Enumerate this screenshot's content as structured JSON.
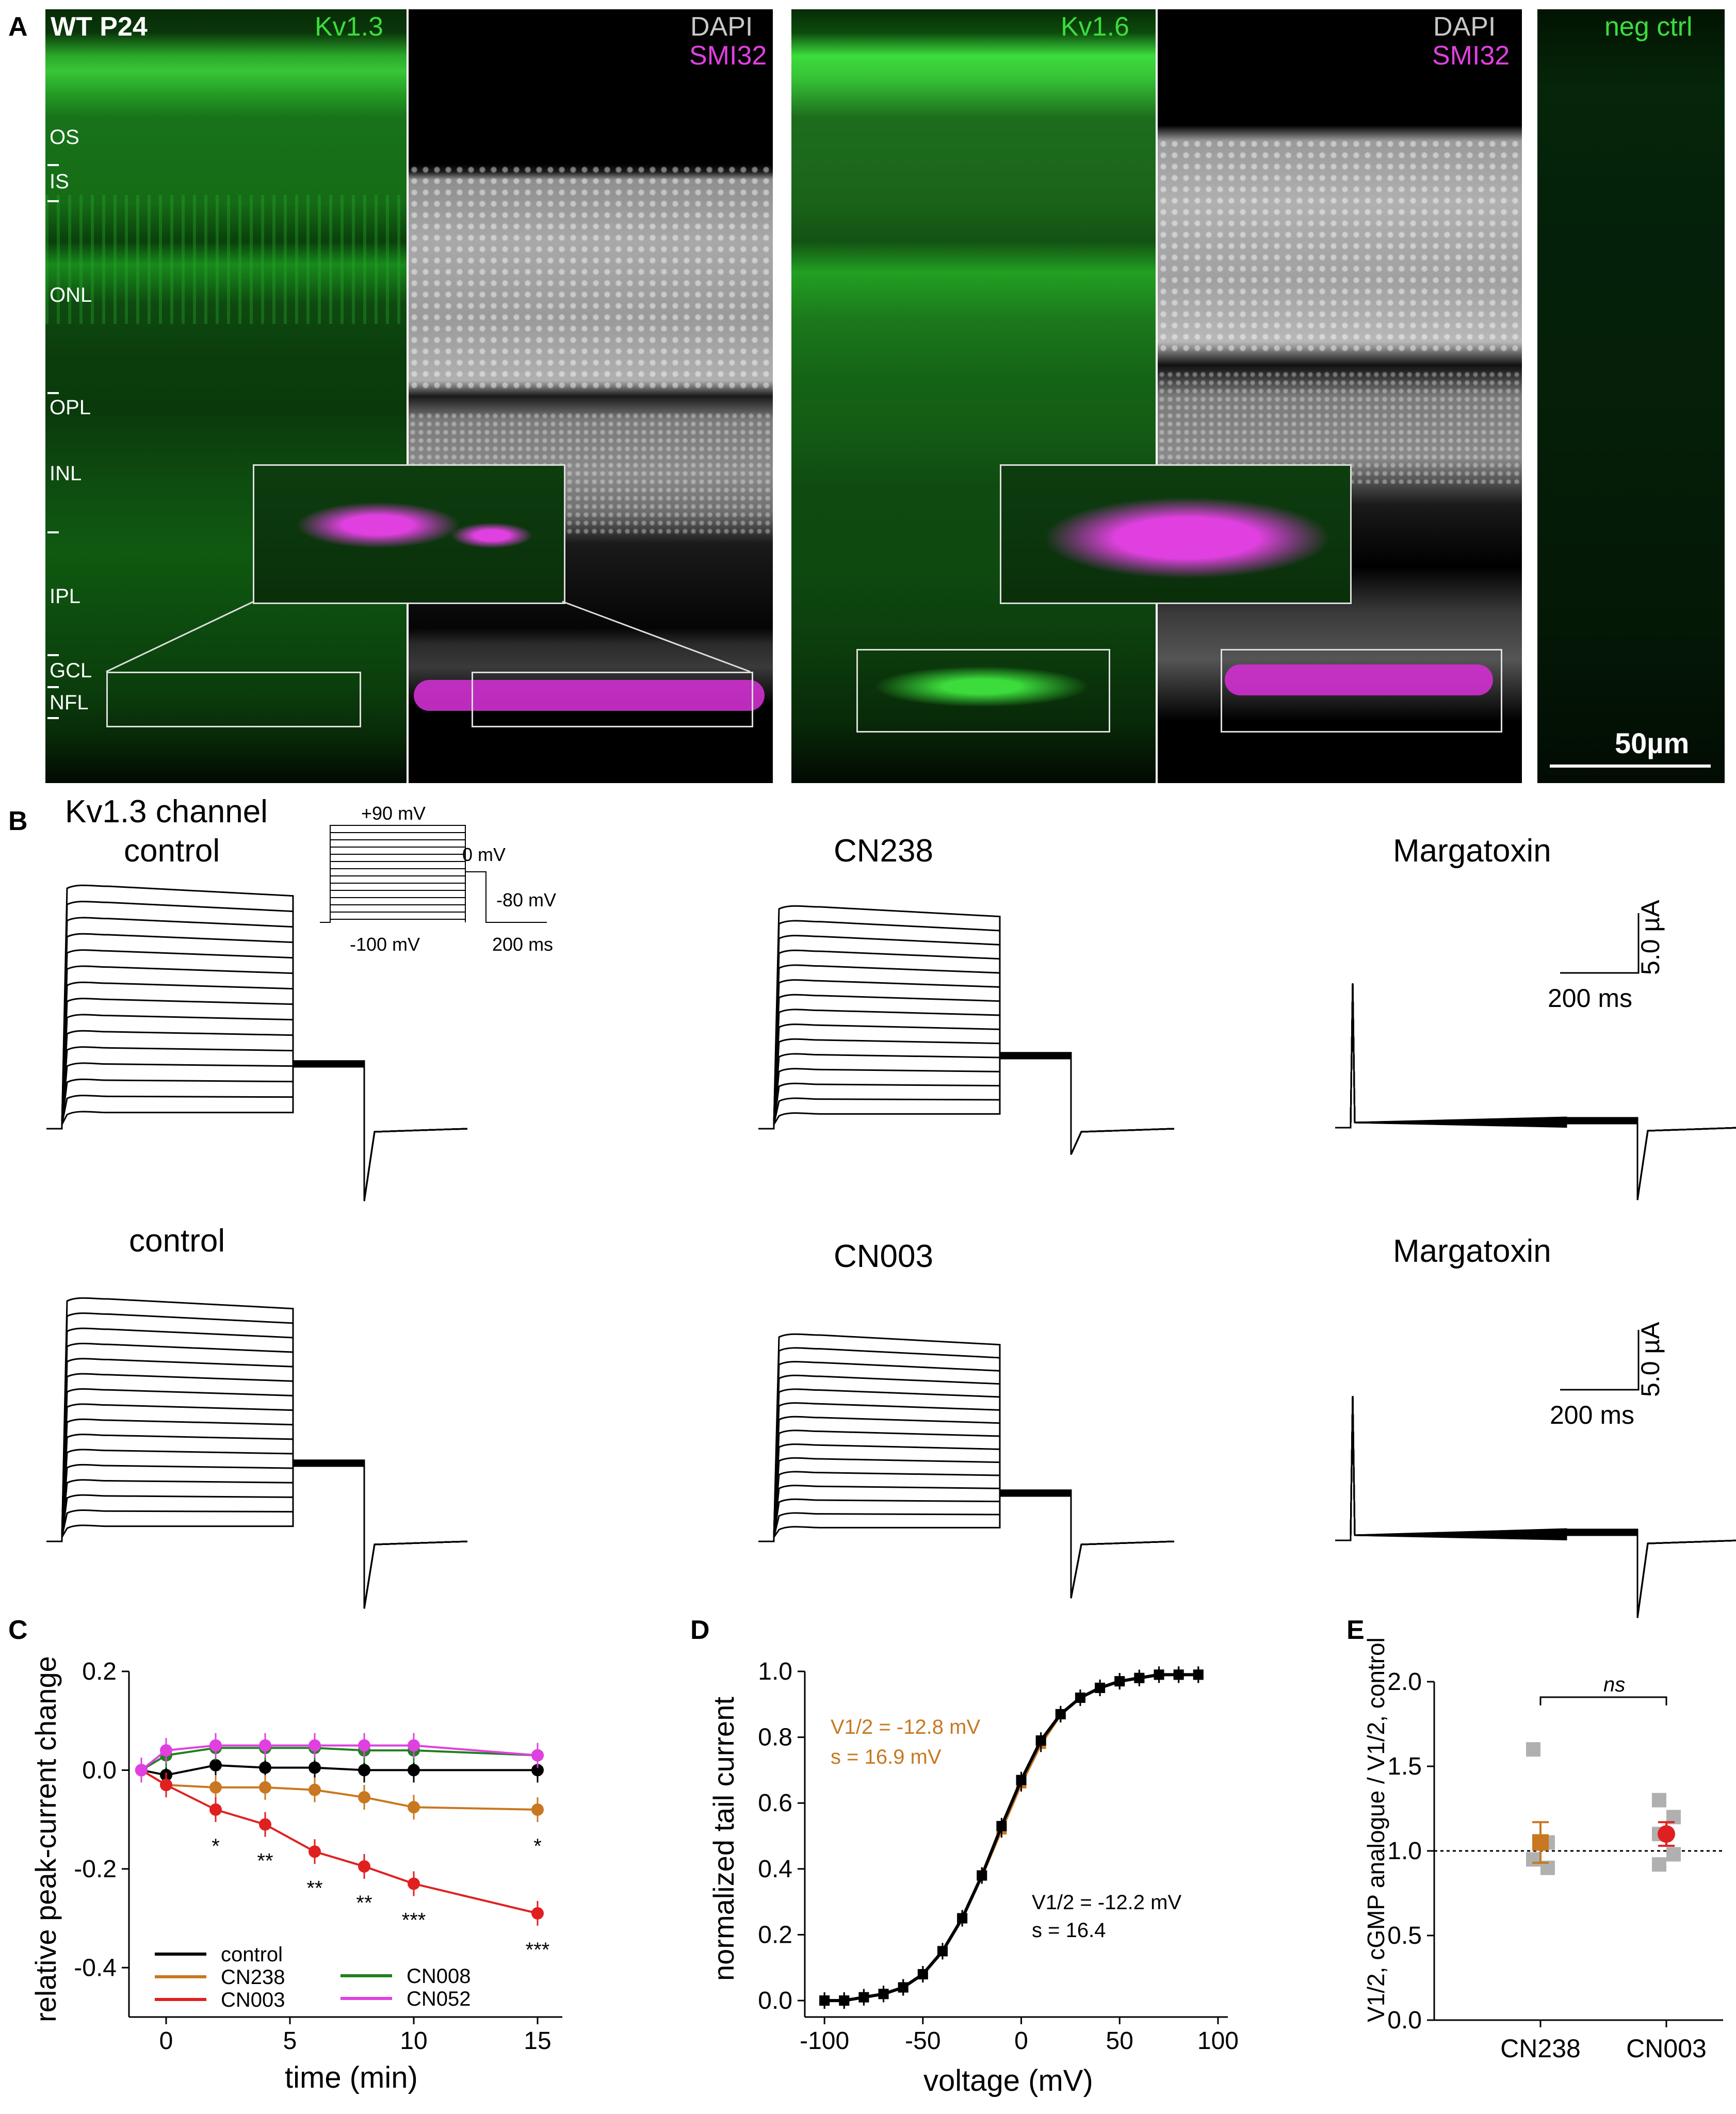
{
  "panels": {
    "A": "A",
    "B": "B",
    "C": "C",
    "D": "D",
    "E": "E"
  },
  "panelA": {
    "title": "WT P24",
    "kv13": "Kv1.3",
    "kv16": "Kv1.6",
    "dapi": "DAPI",
    "smi32": "SMI32",
    "neg_ctrl": "neg ctrl",
    "scale_bar": "50µm",
    "layers": [
      "OS",
      "IS",
      "ONL",
      "OPL",
      "INL",
      "IPL",
      "GCL",
      "NFL"
    ],
    "colors": {
      "green": "#3cdc3c",
      "magenta": "#e040e0",
      "gray": "#c8c8c8"
    }
  },
  "panelB": {
    "title": "Kv1.3 channel",
    "row1": {
      "control": "control",
      "drug": "CN238",
      "toxin": "Margatoxin"
    },
    "row2": {
      "control": "control",
      "drug": "CN003",
      "toxin": "Margatoxin"
    },
    "protocol": {
      "v_top": "+90 mV",
      "v_zero": "0 mV",
      "v_hold": "-80 mV",
      "v_bottom": "-100 mV",
      "t_scale": "200 ms"
    },
    "scale": {
      "current": "5.0 µA",
      "time": "200 ms"
    }
  },
  "panelC": {
    "ylabel": "relative peak-current change",
    "xlabel": "time (min)",
    "yticks": [
      "0.2",
      "0.0",
      "-0.2",
      "-0.4"
    ],
    "xticks": [
      "0",
      "5",
      "10",
      "15"
    ],
    "legend": [
      "control",
      "CN238",
      "CN003",
      "CN008",
      "CN052"
    ],
    "stars": [
      "*",
      "**",
      "**",
      "**",
      "***",
      "***",
      "*",
      "*"
    ]
  },
  "panelD": {
    "ylabel": "normalized tail current",
    "xlabel": "voltage (mV)",
    "yticks": [
      "1.0",
      "0.8",
      "0.6",
      "0.4",
      "0.2",
      "0.0"
    ],
    "xticks": [
      "-100",
      "-50",
      "0",
      "50",
      "100"
    ],
    "fit1_v": "V1/2 = -12.8 mV",
    "fit1_s": "s = 16.9 mV",
    "fit2_v": "V1/2 = -12.2 mV",
    "fit2_s": "s = 16.4"
  },
  "panelE": {
    "ylabel": "V1/2, cGMP analogue / V1/2, control",
    "yticks": [
      "2.0",
      "1.5",
      "1.0",
      "0.5",
      "0.0"
    ],
    "xticks": [
      "CN238",
      "CN003"
    ],
    "sig": "ns"
  },
  "chart_data": [
    {
      "type": "line",
      "title": "",
      "xlabel": "time (min)",
      "ylabel": "relative peak-current change",
      "ylim": [
        -0.5,
        0.2
      ],
      "xlim": [
        -1.5,
        16
      ],
      "series": [
        {
          "name": "control",
          "color": "#000000",
          "x": [
            -1,
            0,
            2,
            4,
            6,
            8,
            10,
            15
          ],
          "y": [
            0,
            -0.01,
            0.01,
            0.005,
            0.005,
            0.0,
            0.0,
            0.0
          ]
        },
        {
          "name": "CN238",
          "color": "#c87820",
          "x": [
            -1,
            0,
            2,
            4,
            6,
            8,
            10,
            15
          ],
          "y": [
            0,
            -0.03,
            -0.035,
            -0.035,
            -0.04,
            -0.055,
            -0.075,
            -0.08
          ]
        },
        {
          "name": "CN003",
          "color": "#e02020",
          "x": [
            -1,
            0,
            2,
            4,
            6,
            8,
            10,
            15
          ],
          "y": [
            0,
            -0.03,
            -0.08,
            -0.11,
            -0.165,
            -0.195,
            -0.23,
            -0.29
          ]
        },
        {
          "name": "CN008",
          "color": "#208020",
          "x": [
            -1,
            0,
            2,
            4,
            6,
            8,
            10,
            15
          ],
          "y": [
            0,
            0.03,
            0.045,
            0.045,
            0.045,
            0.04,
            0.04,
            0.03
          ]
        },
        {
          "name": "CN052",
          "color": "#e040e0",
          "x": [
            -1,
            0,
            2,
            4,
            6,
            8,
            10,
            15
          ],
          "y": [
            0,
            0.04,
            0.05,
            0.05,
            0.05,
            0.05,
            0.05,
            0.03
          ]
        }
      ]
    },
    {
      "type": "line",
      "title": "",
      "xlabel": "voltage (mV)",
      "ylabel": "normalized tail current",
      "xlim": [
        -110,
        105
      ],
      "ylim": [
        -0.05,
        1.0
      ],
      "series": [
        {
          "name": "CN238",
          "color": "#c87820",
          "x": [
            -100,
            -90,
            -80,
            -70,
            -60,
            -50,
            -40,
            -30,
            -20,
            -10,
            0,
            10,
            20,
            30,
            40,
            50,
            60,
            70,
            80,
            90
          ],
          "y": [
            0.0,
            0.0,
            0.01,
            0.02,
            0.04,
            0.08,
            0.15,
            0.25,
            0.38,
            0.52,
            0.66,
            0.78,
            0.87,
            0.92,
            0.95,
            0.97,
            0.98,
            0.99,
            0.99,
            0.99
          ]
        },
        {
          "name": "control",
          "color": "#000000",
          "x": [
            -100,
            -90,
            -80,
            -70,
            -60,
            -50,
            -40,
            -30,
            -20,
            -10,
            0,
            10,
            20,
            30,
            40,
            50,
            60,
            70,
            80,
            90
          ],
          "y": [
            0.0,
            0.0,
            0.01,
            0.02,
            0.04,
            0.08,
            0.15,
            0.25,
            0.38,
            0.53,
            0.67,
            0.79,
            0.87,
            0.92,
            0.95,
            0.97,
            0.98,
            0.99,
            0.99,
            0.99
          ]
        }
      ]
    },
    {
      "type": "scatter",
      "title": "",
      "ylabel": "V1/2, cGMP analogue / V1/2, control",
      "categories": [
        "CN238",
        "CN003"
      ],
      "ylim": [
        0,
        2.0
      ],
      "series": [
        {
          "name": "CN238",
          "color": "#c87820",
          "mean": 1.05,
          "sem": 0.12,
          "points": [
            1.6,
            1.05,
            0.95,
            0.9
          ]
        },
        {
          "name": "CN003",
          "color": "#e02020",
          "mean": 1.1,
          "sem": 0.07,
          "points": [
            1.3,
            1.2,
            1.1,
            0.98,
            0.92
          ]
        }
      ]
    }
  ]
}
